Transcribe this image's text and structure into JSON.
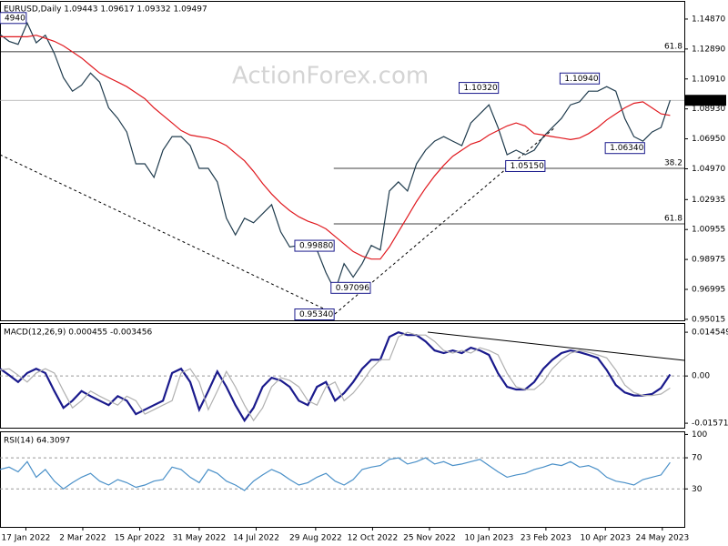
{
  "watermark": "ActionForex.com",
  "chart_data": [
    {
      "type": "line",
      "title": "EURUSD,Daily  1.09443 1.09617 1.09332 1.09497",
      "xlim": [
        "2021-12-28",
        "2023-06-10"
      ],
      "x": [
        "2021-12-28",
        "2022-01-04",
        "2022-01-11",
        "2022-01-18",
        "2022-01-25",
        "2022-02-01",
        "2022-02-08",
        "2022-02-15",
        "2022-02-22",
        "2022-03-01",
        "2022-03-08",
        "2022-03-15",
        "2022-03-22",
        "2022-03-29",
        "2022-04-05",
        "2022-04-12",
        "2022-04-19",
        "2022-04-26",
        "2022-05-03",
        "2022-05-10",
        "2022-05-17",
        "2022-05-24",
        "2022-05-31",
        "2022-06-07",
        "2022-06-14",
        "2022-06-21",
        "2022-06-28",
        "2022-07-05",
        "2022-07-12",
        "2022-07-19",
        "2022-07-26",
        "2022-08-02",
        "2022-08-09",
        "2022-08-16",
        "2022-08-23",
        "2022-08-30",
        "2022-09-06",
        "2022-09-13",
        "2022-09-20",
        "2022-09-27",
        "2022-10-04",
        "2022-10-11",
        "2022-10-18",
        "2022-10-25",
        "2022-11-01",
        "2022-11-08",
        "2022-11-15",
        "2022-11-22",
        "2022-11-29",
        "2022-12-06",
        "2022-12-13",
        "2022-12-20",
        "2022-12-27",
        "2023-01-03",
        "2023-01-10",
        "2023-01-17",
        "2023-01-24",
        "2023-01-31",
        "2023-02-07",
        "2023-02-14",
        "2023-02-21",
        "2023-02-28",
        "2023-03-07",
        "2023-03-14",
        "2023-03-21",
        "2023-03-28",
        "2023-04-04",
        "2023-04-11",
        "2023-04-18",
        "2023-04-25",
        "2023-05-02",
        "2023-05-09",
        "2023-05-16",
        "2023-05-23",
        "2023-05-30"
      ],
      "ylim": [
        0.9495,
        1.1601
      ],
      "yticks": [
        {
          "value": 1.1487,
          "label": "1.14870"
        },
        {
          "value": 1.1289,
          "label": "1.12890"
        },
        {
          "value": 1.1091,
          "label": "1.10910"
        },
        {
          "value": 1.0893,
          "label": "1.08930"
        },
        {
          "value": 1.0695,
          "label": "1.06950"
        },
        {
          "value": 1.0497,
          "label": "1.04970"
        },
        {
          "value": 1.02935,
          "label": "1.02935"
        },
        {
          "value": 1.00955,
          "label": "1.00955"
        },
        {
          "value": 0.98975,
          "label": "0.98975"
        },
        {
          "value": 0.96995,
          "label": "0.96995"
        },
        {
          "value": 0.95015,
          "label": "0.95015"
        }
      ],
      "series": [
        {
          "color": "#1f3b4d",
          "values": [
            1.1385,
            1.134,
            1.132,
            1.146,
            1.133,
            1.138,
            1.126,
            1.11,
            1.101,
            1.105,
            1.113,
            1.107,
            1.09,
            1.083,
            1.074,
            1.053,
            1.053,
            1.044,
            1.062,
            1.071,
            1.071,
            1.065,
            1.05,
            1.05,
            1.041,
            1.017,
            1.006,
            1.017,
            1.014,
            1.02,
            1.026,
            1.008,
            0.998,
            0.999,
            1.002,
            0.996,
            0.981,
            0.969,
            0.987,
            0.978,
            0.987,
            0.999,
            0.996,
            1.035,
            1.041,
            1.035,
            1.053,
            1.062,
            1.068,
            1.071,
            1.068,
            1.065,
            1.08,
            1.086,
            1.092,
            1.077,
            1.059,
            1.062,
            1.059,
            1.062,
            1.071,
            1.077,
            1.083,
            1.092,
            1.094,
            1.101,
            1.101,
            1.104,
            1.101,
            1.083,
            1.071,
            1.068,
            1.074,
            1.077,
            1.095
          ]
        },
        {
          "color": "#e0191f",
          "values": [
            1.137,
            1.137,
            1.137,
            1.137,
            1.138,
            1.136,
            1.134,
            1.131,
            1.127,
            1.123,
            1.118,
            1.113,
            1.11,
            1.107,
            1.104,
            1.1,
            1.096,
            1.09,
            1.085,
            1.08,
            1.075,
            1.072,
            1.071,
            1.07,
            1.068,
            1.065,
            1.06,
            1.055,
            1.048,
            1.04,
            1.033,
            1.027,
            1.022,
            1.018,
            1.015,
            1.013,
            1.01,
            1.005,
            1.0,
            0.995,
            0.992,
            0.99,
            0.99,
            0.998,
            1.008,
            1.018,
            1.028,
            1.037,
            1.045,
            1.052,
            1.058,
            1.062,
            1.066,
            1.068,
            1.072,
            1.075,
            1.078,
            1.08,
            1.078,
            1.073,
            1.072,
            1.071,
            1.07,
            1.069,
            1.07,
            1.073,
            1.077,
            1.082,
            1.086,
            1.09,
            1.093,
            1.094,
            1.09,
            1.086,
            1.085
          ]
        }
      ],
      "levels": [
        {
          "label": "61.8",
          "value": 1.1271,
          "x_from": "2021-12-28"
        },
        {
          "label": "38.2",
          "value": 1.05,
          "x_from": "2022-09-12"
        },
        {
          "label": "61.8",
          "value": 1.0133,
          "x_from": "2022-09-12"
        }
      ],
      "annotations": [
        {
          "label": "4940",
          "x": "2022-01-18",
          "y": 1.1494
        },
        {
          "label": "1.10320",
          "x": "2023-01-18",
          "y": 1.1032
        },
        {
          "label": "1.10940",
          "x": "2023-04-06",
          "y": 1.1094
        },
        {
          "label": "1.06340",
          "x": "2023-05-11",
          "y": 1.0634
        },
        {
          "label": "1.05150",
          "x": "2023-02-23",
          "y": 1.0515
        },
        {
          "label": "0.99880",
          "x": "2022-09-13",
          "y": 0.9988
        },
        {
          "label": "0.97096",
          "x": "2022-10-11",
          "y": 0.97096
        },
        {
          "label": "0.95340",
          "x": "2022-09-13",
          "y": 0.9534
        }
      ],
      "last_price": {
        "label": "1.09497",
        "value": 1.09497
      }
    },
    {
      "type": "line",
      "title": "MACD(12,26,9) 0.000455 -0.003456",
      "ylim": [
        -0.0172,
        0.0176
      ],
      "yticks": [
        0.014549,
        {
          "value": 0,
          "label": "0.00"
        },
        -0.015712
      ],
      "series": [
        {
          "color": "#1a1a8c",
          "values": [
            0.0024,
            0.0003,
            -0.002,
            0.001,
            0.0024,
            0.001,
            -0.005,
            -0.0106,
            -0.0082,
            -0.005,
            -0.0067,
            -0.0082,
            -0.0097,
            -0.0067,
            -0.0082,
            -0.0127,
            -0.0112,
            -0.0097,
            -0.0082,
            0.001,
            0.0024,
            -0.002,
            -0.0112,
            -0.005,
            0.0015,
            -0.0036,
            -0.0097,
            -0.0148,
            -0.0106,
            -0.0036,
            -0.0006,
            -0.0015,
            -0.0036,
            -0.0082,
            -0.0097,
            -0.0036,
            -0.002,
            -0.0082,
            -0.0057,
            -0.002,
            0.0024,
            0.0054,
            0.0054,
            0.013,
            0.0145,
            0.0136,
            0.0136,
            0.0115,
            0.0085,
            0.0076,
            0.0085,
            0.0076,
            0.0094,
            0.0085,
            0.007,
            0.0009,
            -0.0036,
            -0.0045,
            -0.0045,
            -0.002,
            0.0024,
            0.0054,
            0.0076,
            0.0085,
            0.0079,
            0.007,
            0.006,
            0.002,
            -0.003,
            -0.0055,
            -0.0065,
            -0.0065,
            -0.006,
            -0.004,
            0.0005
          ]
        },
        {
          "color": "#b0b0b0",
          "values": [
            0.002,
            0.0024,
            0.0003,
            -0.002,
            0.001,
            0.0024,
            0.001,
            -0.005,
            -0.0106,
            -0.0082,
            -0.005,
            -0.0067,
            -0.0082,
            -0.0097,
            -0.0067,
            -0.0082,
            -0.0127,
            -0.0112,
            -0.0097,
            -0.0082,
            0.001,
            0.0024,
            -0.002,
            -0.0112,
            -0.005,
            0.0015,
            -0.0036,
            -0.0097,
            -0.0148,
            -0.0106,
            -0.0036,
            -0.0006,
            -0.0015,
            -0.0036,
            -0.0082,
            -0.0097,
            -0.0036,
            -0.002,
            -0.0082,
            -0.0057,
            -0.002,
            0.0024,
            0.0054,
            0.0054,
            0.013,
            0.0145,
            0.0136,
            0.0136,
            0.0115,
            0.0085,
            0.0076,
            0.0085,
            0.0076,
            0.0094,
            0.0085,
            0.007,
            0.0009,
            -0.0036,
            -0.0045,
            -0.0045,
            -0.002,
            0.0024,
            0.0054,
            0.0076,
            0.0085,
            0.0079,
            0.007,
            0.006,
            0.002,
            -0.003,
            -0.0055,
            -0.0065,
            -0.0065,
            -0.006,
            -0.004
          ]
        }
      ]
    },
    {
      "type": "line",
      "title": "RSI(14) 64.3097",
      "ylim": [
        -20,
        104
      ],
      "yticks": [
        30,
        70,
        100
      ],
      "xticks": [
        {
          "value": "2022-01-17",
          "label": "17 Jan 2022"
        },
        {
          "value": "2022-03-02",
          "label": "2 Mar 2022"
        },
        {
          "value": "2022-04-15",
          "label": "15 Apr 2022"
        },
        {
          "value": "2022-05-31",
          "label": "31 May 2022"
        },
        {
          "value": "2022-07-14",
          "label": "14 Jul 2022"
        },
        {
          "value": "2022-08-29",
          "label": "29 Aug 2022"
        },
        {
          "value": "2022-10-12",
          "label": "12 Oct 2022"
        },
        {
          "value": "2022-11-25",
          "label": "25 Nov 2022"
        },
        {
          "value": "2023-01-10",
          "label": "10 Jan 2023"
        },
        {
          "value": "2023-02-23",
          "label": "23 Feb 2023"
        },
        {
          "value": "2023-04-10",
          "label": "10 Apr 2023"
        },
        {
          "value": "2023-05-24",
          "label": "24 May 2023"
        }
      ],
      "series": [
        {
          "color": "#4a90c8",
          "values": [
            55,
            58,
            52,
            65,
            45,
            55,
            40,
            30,
            38,
            45,
            50,
            40,
            35,
            42,
            38,
            32,
            35,
            40,
            42,
            58,
            55,
            45,
            38,
            55,
            50,
            40,
            35,
            28,
            40,
            48,
            55,
            50,
            42,
            35,
            38,
            45,
            50,
            40,
            35,
            42,
            55,
            58,
            60,
            68,
            70,
            62,
            65,
            70,
            62,
            65,
            60,
            62,
            65,
            68,
            60,
            52,
            45,
            48,
            50,
            55,
            58,
            62,
            60,
            65,
            58,
            60,
            55,
            45,
            40,
            38,
            35,
            42,
            45,
            48,
            64
          ]
        }
      ]
    }
  ]
}
